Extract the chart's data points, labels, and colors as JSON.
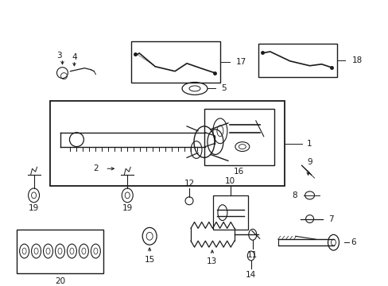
{
  "background_color": "#ffffff",
  "fig_width": 4.89,
  "fig_height": 3.6,
  "dpi": 100,
  "line_color": "#1a1a1a",
  "text_color": "#1a1a1a"
}
